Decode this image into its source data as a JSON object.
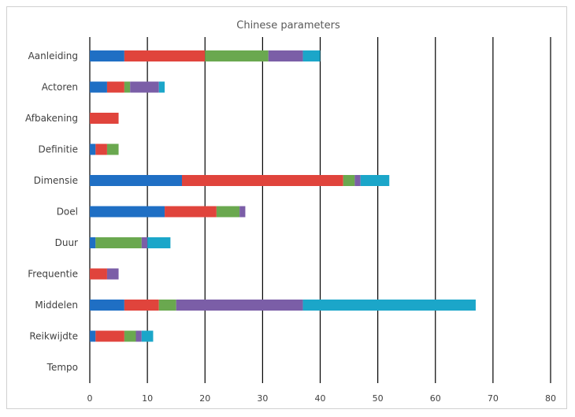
{
  "chart_data": {
    "type": "bar",
    "orientation": "horizontal",
    "stacked": true,
    "title": "Chinese parameters",
    "categories": [
      "Aanleiding",
      "Actoren",
      "Afbakening",
      "Definitie",
      "Dimensie",
      "Doel",
      "Duur",
      "Frequentie",
      "Middelen",
      "Reikwijdte",
      "Tempo"
    ],
    "series": [
      {
        "color": "#1f6fc4",
        "values": [
          6,
          3,
          0,
          1,
          16,
          13,
          1,
          0,
          6,
          1,
          0
        ]
      },
      {
        "color": "#e0443c",
        "values": [
          14,
          3,
          5,
          2,
          28,
          9,
          0,
          3,
          6,
          5,
          0
        ]
      },
      {
        "color": "#6aa84f",
        "values": [
          11,
          1,
          0,
          2,
          2,
          4,
          8,
          0,
          3,
          2,
          0
        ]
      },
      {
        "color": "#7b5ea7",
        "values": [
          6,
          5,
          0,
          0,
          1,
          1,
          1,
          2,
          22,
          1,
          0
        ]
      },
      {
        "color": "#1ba6c9",
        "values": [
          3,
          1,
          0,
          0,
          5,
          0,
          4,
          0,
          30,
          2,
          0
        ]
      }
    ],
    "xlim": [
      0,
      80
    ],
    "xticks": [
      0,
      10,
      20,
      30,
      40,
      50,
      60,
      70,
      80
    ],
    "grid": "vertical"
  }
}
